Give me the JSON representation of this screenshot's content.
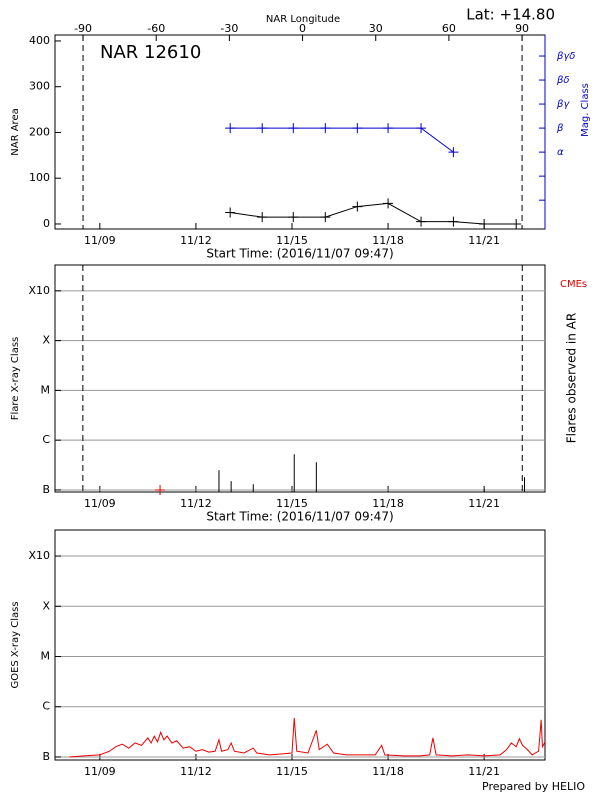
{
  "lat": "Lat: +14.80",
  "footer": "Prepared by HELIO",
  "chart_data": [
    {
      "type": "line",
      "title": "NAR 12610",
      "ylabel": "NAR Area",
      "y2label": "Mag. Class",
      "xlabel": "Start Time: (2016/11/07 09:47)",
      "x2label": "NAR Longitude",
      "xlim": [
        0.6,
        15.9
      ],
      "xticks": [
        {
          "value": 2,
          "label": "11/09"
        },
        {
          "value": 5,
          "label": "11/12"
        },
        {
          "value": 8,
          "label": "11/15"
        },
        {
          "value": 11,
          "label": "11/18"
        },
        {
          "value": 14,
          "label": "11/21"
        }
      ],
      "x2lim": [
        -101.5,
        99.4
      ],
      "x2ticks": [
        -90,
        -60,
        -30,
        0,
        30,
        60,
        90
      ],
      "limb_longitudes": [
        -90,
        90
      ],
      "ylim": [
        -11,
        413
      ],
      "yticks": [
        0,
        100,
        200,
        300,
        400
      ],
      "y2lim": [
        -0.2,
        7.875
      ],
      "y2ticks": [
        {
          "value": 1,
          "label": null
        },
        {
          "value": 2,
          "label": null
        },
        {
          "value": 3,
          "label": "α"
        },
        {
          "value": 4,
          "label": "β"
        },
        {
          "value": 5,
          "label": "βγ"
        },
        {
          "value": 6,
          "label": "βδ"
        },
        {
          "value": 7,
          "label": "βγδ"
        }
      ],
      "y2color": "#0000cc",
      "series": [
        {
          "color": "#000000",
          "x": [
            6.07,
            7.07,
            8.04,
            9.04,
            10.04,
            11.0,
            12.03,
            13.04,
            14.0,
            15.0
          ],
          "values": [
            25,
            15,
            15,
            15,
            38,
            45,
            5,
            5,
            0,
            0
          ]
        },
        {
          "color": "#0000cc",
          "axis": "y2",
          "x": [
            6.07,
            7.07,
            8.04,
            9.04,
            10.04,
            11.0,
            12.03,
            13.04
          ],
          "values": [
            4,
            4,
            4,
            4,
            4,
            4,
            4,
            3
          ]
        }
      ]
    },
    {
      "type": "flares",
      "ylabel": "Flare X-ray Class",
      "xlabel": "Start Time: (2016/11/07 09:47)",
      "xlim": [
        0.6,
        15.9
      ],
      "xticks": [
        {
          "value": 2,
          "label": "11/09"
        },
        {
          "value": 5,
          "label": "11/12"
        },
        {
          "value": 8,
          "label": "11/15"
        },
        {
          "value": 11,
          "label": "11/18"
        },
        {
          "value": 14,
          "label": "11/21"
        }
      ],
      "limb_times": [
        1.47,
        15.19
      ],
      "log": true,
      "grid": true,
      "ylim": [
        9.1e-08,
        0.0033
      ],
      "yticks": [
        {
          "value": 1e-07,
          "label": "B"
        },
        {
          "value": 1e-06,
          "label": "C"
        },
        {
          "value": 1e-05,
          "label": "M"
        },
        {
          "value": 0.0001,
          "label": "X"
        },
        {
          "value": 0.001,
          "label": "X10"
        }
      ],
      "series": [
        {
          "name": "Flares observed in AR",
          "color": "#000000",
          "x": [
            5.72,
            6.1,
            6.79,
            8.07,
            8.76,
            14.0,
            15.26
          ],
          "values": [
            2.5e-07,
            1.5e-07,
            1.3e-07,
            5.2e-07,
            3.6e-07,
            1.05e-07,
            1.8e-07
          ]
        },
        {
          "name": "CMEs",
          "color": "#dd0000",
          "x": [
            3.88
          ],
          "values": [
            1e-07
          ]
        }
      ]
    },
    {
      "type": "line",
      "ylabel": "GOES X-ray Class",
      "xlim": [
        0.6,
        15.9
      ],
      "xticks": [
        {
          "value": 2,
          "label": "11/09"
        },
        {
          "value": 5,
          "label": "11/12"
        },
        {
          "value": 8,
          "label": "11/15"
        },
        {
          "value": 11,
          "label": "11/18"
        },
        {
          "value": 14,
          "label": "11/21"
        }
      ],
      "log": true,
      "grid": true,
      "ylim": [
        8.7e-08,
        0.0033
      ],
      "yticks": [
        {
          "value": 1e-07,
          "label": "B"
        },
        {
          "value": 1e-06,
          "label": "C"
        },
        {
          "value": 1e-05,
          "label": "M"
        },
        {
          "value": 0.0001,
          "label": "X"
        },
        {
          "value": 0.001,
          "label": "X10"
        }
      ],
      "color": "#ee0000",
      "x": [
        1.05,
        1.5,
        2.0,
        2.3,
        2.5,
        2.7,
        2.9,
        3.1,
        3.3,
        3.5,
        3.6,
        3.7,
        3.8,
        3.9,
        4.0,
        4.1,
        4.25,
        4.4,
        4.6,
        4.8,
        5.0,
        5.2,
        5.4,
        5.6,
        5.72,
        5.8,
        6.0,
        6.1,
        6.2,
        6.5,
        6.79,
        6.9,
        7.3,
        7.7,
        8.0,
        8.07,
        8.15,
        8.5,
        8.76,
        8.85,
        9.1,
        9.3,
        9.7,
        10.2,
        10.6,
        10.8,
        10.9,
        11.5,
        12.0,
        12.3,
        12.4,
        12.5,
        13.0,
        13.5,
        14.0,
        14.5,
        14.7,
        14.85,
        15.0,
        15.1,
        15.2,
        15.35,
        15.5,
        15.7,
        15.78,
        15.82,
        15.9
      ],
      "values": [
        1e-07,
        1.05e-07,
        1.1e-07,
        1.3e-07,
        1.6e-07,
        1.8e-07,
        1.5e-07,
        1.9e-07,
        1.7e-07,
        2.4e-07,
        1.9e-07,
        2.6e-07,
        2e-07,
        3.1e-07,
        2.2e-07,
        2.6e-07,
        1.9e-07,
        2.1e-07,
        1.5e-07,
        1.6e-07,
        1.3e-07,
        1.4e-07,
        1.25e-07,
        1.3e-07,
        2.2e-07,
        1.3e-07,
        1.4e-07,
        1.9e-07,
        1.3e-07,
        1.2e-07,
        1.5e-07,
        1.2e-07,
        1.1e-07,
        1.15e-07,
        1.2e-07,
        6e-07,
        1.3e-07,
        1.2e-07,
        3.4e-07,
        1.4e-07,
        1.8e-07,
        1.2e-07,
        1.1e-07,
        1.1e-07,
        1.1e-07,
        1.7e-07,
        1.1e-07,
        1.05e-07,
        1.05e-07,
        1.1e-07,
        2.4e-07,
        1.1e-07,
        1.05e-07,
        1.1e-07,
        1.05e-07,
        1.1e-07,
        1.4e-07,
        1.9e-07,
        1.6e-07,
        2.3e-07,
        1.7e-07,
        1.4e-07,
        1.1e-07,
        1.3e-07,
        5.5e-07,
        1.6e-07,
        2e-07
      ]
    }
  ]
}
